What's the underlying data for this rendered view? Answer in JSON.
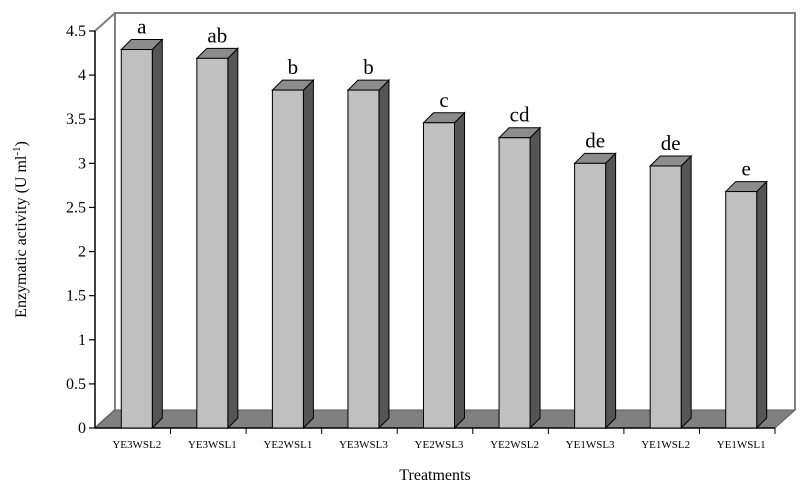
{
  "chart_data": {
    "type": "bar",
    "style": "3d",
    "title": "",
    "xlabel": "Treatments",
    "ylabel": {
      "main": "Enzymatic activity (U ml",
      "superscript": "-1",
      "close": ")"
    },
    "ylim": [
      0,
      4.5
    ],
    "yticks": [
      "0",
      "0.5",
      "1",
      "1.5",
      "2",
      "2.5",
      "3",
      "3.5",
      "4",
      "4.5"
    ],
    "grid": false,
    "legend": "none",
    "categories": [
      "YE3WSL2",
      "YE3WSL1",
      "YE2WSL1",
      "YE3WSL3",
      "YE2WSL3",
      "YE2WSL2",
      "YE1WSL3",
      "YE1WSL2",
      "YE1WSL1"
    ],
    "values": [
      4.29,
      4.19,
      3.83,
      3.83,
      3.46,
      3.29,
      3.0,
      2.97,
      2.68
    ],
    "significance_labels": [
      "a",
      "ab",
      "b",
      "b",
      "c",
      "cd",
      "de",
      "de",
      "e"
    ],
    "colors": {
      "bar_front": "#c0c0c0",
      "bar_side": "#555555",
      "bar_top": "#8c8c8c",
      "floor": "#808080",
      "wall": "#808080",
      "axis": "#000000"
    }
  }
}
